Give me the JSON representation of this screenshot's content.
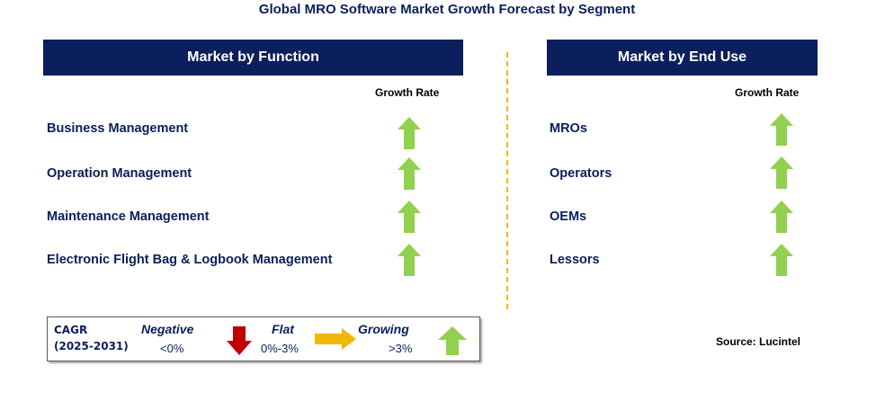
{
  "title": "Global MRO Software Market Growth Forecast by Segment",
  "left_panel": {
    "header": "Market by Function",
    "rate_label": "Growth Rate",
    "items": [
      {
        "label": "Business Management",
        "trend": "growing"
      },
      {
        "label": "Operation Management",
        "trend": "growing"
      },
      {
        "label": "Maintenance Management",
        "trend": "growing"
      },
      {
        "label": "Electronic Flight Bag & Logbook Management",
        "trend": "growing"
      }
    ]
  },
  "right_panel": {
    "header": "Market by End Use",
    "rate_label": "Growth Rate",
    "items": [
      {
        "label": "MROs",
        "trend": "growing"
      },
      {
        "label": "Operators",
        "trend": "growing"
      },
      {
        "label": "OEMs",
        "trend": "growing"
      },
      {
        "label": "Lessors",
        "trend": "growing"
      }
    ]
  },
  "legend": {
    "cagr": "CAGR",
    "period": "(2025-2031)",
    "negative_label": "Negative",
    "negative_range": "<0%",
    "flat_label": "Flat",
    "flat_range": "0%-3%",
    "growing_label": "Growing",
    "growing_range": ">3%"
  },
  "source": "Source: Lucintel",
  "colors": {
    "navy": "#0a1f5c",
    "green_arrow": "#92d050",
    "red_arrow": "#c00000",
    "yellow_arrow": "#f2b705"
  }
}
